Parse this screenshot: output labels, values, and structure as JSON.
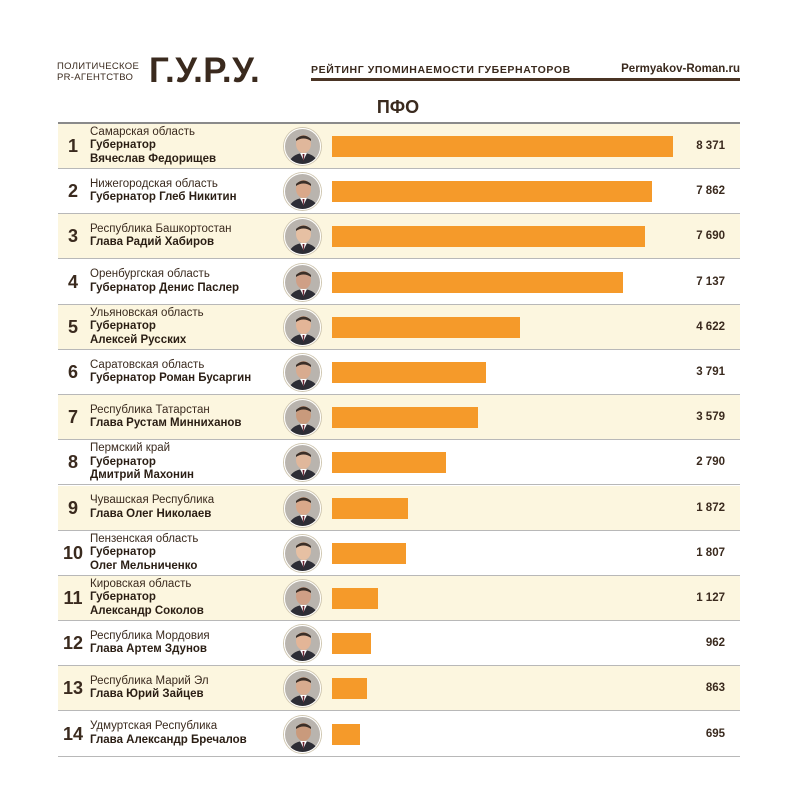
{
  "header": {
    "agency_line1": "ПОЛИТИЧЕСКОЕ",
    "agency_line2": "PR-АГЕНТСТВО",
    "logo": "Г.У.Р.У.",
    "subtitle": "РЕЙТИНГ УПОМИНАЕМОСТИ ГУБЕРНАТОРОВ",
    "site": "Permyakov-Roman.ru"
  },
  "region_title": "ПФО",
  "colors": {
    "bar": "#f59a2a",
    "row_alt": "#fcf6df",
    "text": "#3a2a1e"
  },
  "chart_data": {
    "type": "bar",
    "orientation": "horizontal",
    "title": "ПФО",
    "xlim": [
      0,
      8371
    ],
    "categories": [
      "Самарская область",
      "Нижегородская область",
      "Республика Башкортостан",
      "Оренбургская область",
      "Ульяновская область",
      "Саратовская область",
      "Республика Татарстан",
      "Пермский край",
      "Чувашская Республика",
      "Пензенская область",
      "Кировская область",
      "Республика Мордовия",
      "Республика Марий Эл",
      "Удмуртская Республика"
    ],
    "values": [
      8371,
      7862,
      7690,
      7137,
      4622,
      3791,
      3579,
      2790,
      1872,
      1807,
      1127,
      962,
      863,
      695
    ],
    "rows": [
      {
        "rank": "1",
        "region": "Самарская область",
        "gov_lines": [
          "Губернатор",
          "Вячеслав Федорищев"
        ],
        "value": 8371,
        "label": "8 371"
      },
      {
        "rank": "2",
        "region": "Нижегородская область",
        "gov_lines": [
          "Губернатор Глеб Никитин"
        ],
        "value": 7862,
        "label": "7 862"
      },
      {
        "rank": "3",
        "region": "Республика Башкортостан",
        "gov_lines": [
          "Глава Радий Хабиров"
        ],
        "value": 7690,
        "label": "7 690"
      },
      {
        "rank": "4",
        "region": "Оренбургская область",
        "gov_lines": [
          "Губернатор Денис Паслер"
        ],
        "value": 7137,
        "label": "7 137"
      },
      {
        "rank": "5",
        "region": "Ульяновская область",
        "gov_lines": [
          "Губернатор",
          "Алексей Русских"
        ],
        "value": 4622,
        "label": "4 622"
      },
      {
        "rank": "6",
        "region": "Саратовская область",
        "gov_lines": [
          "Губернатор Роман Бусаргин"
        ],
        "value": 3791,
        "label": "3 791"
      },
      {
        "rank": "7",
        "region": "Республика Татарстан",
        "gov_lines": [
          "Глава Рустам Минниханов"
        ],
        "value": 3579,
        "label": "3 579"
      },
      {
        "rank": "8",
        "region": "Пермский край",
        "gov_lines": [
          "Губернатор",
          "Дмитрий Махонин"
        ],
        "value": 2790,
        "label": "2 790"
      },
      {
        "rank": "9",
        "region": "Чувашская Республика",
        "gov_lines": [
          "Глава Олег Николаев"
        ],
        "value": 1872,
        "label": "1 872"
      },
      {
        "rank": "10",
        "region": "Пензенская область",
        "gov_lines": [
          "Губернатор",
          "Олег Мельниченко"
        ],
        "value": 1807,
        "label": "1 807"
      },
      {
        "rank": "11",
        "region": "Кировская область",
        "gov_lines": [
          "Губернатор",
          "Александр Соколов"
        ],
        "value": 1127,
        "label": "1 127"
      },
      {
        "rank": "12",
        "region": "Республика Мордовия",
        "gov_lines": [
          "Глава Артем Здунов"
        ],
        "value": 962,
        "label": "962"
      },
      {
        "rank": "13",
        "region": "Республика Марий Эл",
        "gov_lines": [
          "Глава Юрий Зайцев"
        ],
        "value": 863,
        "label": "863"
      },
      {
        "rank": "14",
        "region": "Удмуртская Республика",
        "gov_lines": [
          "Глава Александр Бречалов"
        ],
        "value": 695,
        "label": "695"
      }
    ]
  }
}
